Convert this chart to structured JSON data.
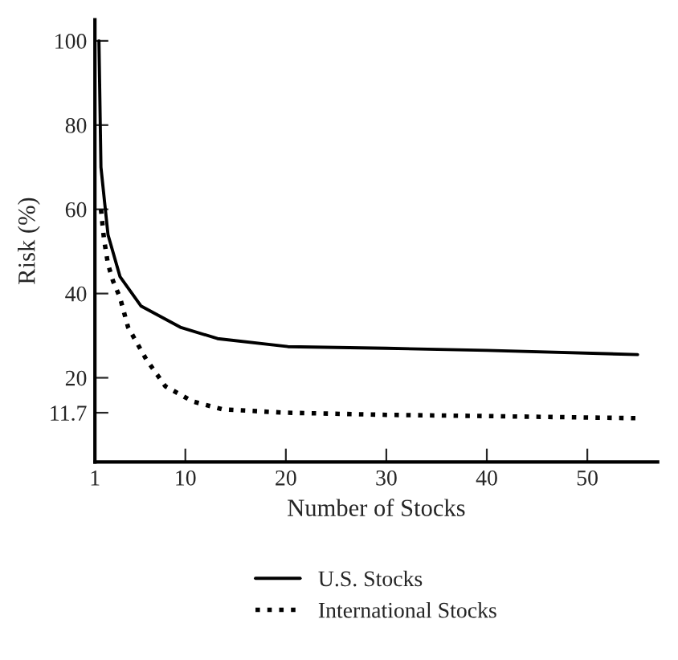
{
  "chart_data": {
    "type": "line",
    "xlabel": "Number of Stocks",
    "ylabel": "Risk (%)",
    "xlim": [
      1,
      57
    ],
    "ylim": [
      0,
      105
    ],
    "xticks": [
      1,
      10,
      20,
      30,
      40,
      50
    ],
    "yticks": [
      11.7,
      20,
      40,
      60,
      80,
      100
    ],
    "grid": false,
    "legend": "bottom",
    "marker": "none",
    "series": [
      {
        "name": "U.S. Stocks",
        "color": "#000000",
        "line_style": "solid",
        "x": [
          1.4,
          1.6,
          2.3,
          3.5,
          5.6,
          9.5,
          13.2,
          20.2,
          30,
          40,
          55
        ],
        "values": [
          100,
          70,
          54,
          44,
          37,
          32,
          29.3,
          27.4,
          27,
          26.5,
          25.5
        ]
      },
      {
        "name": "International Stocks",
        "color": "#000000",
        "line_style": "dotted",
        "x": [
          1.6,
          1.9,
          2.3,
          2.8,
          3.5,
          4.3,
          6.1,
          8,
          10.7,
          13.7,
          20,
          30,
          40,
          55
        ],
        "values": [
          60,
          53,
          47,
          43,
          39,
          32,
          24.4,
          18,
          14.4,
          12.5,
          11.7,
          11.2,
          10.9,
          10.4
        ]
      }
    ]
  }
}
